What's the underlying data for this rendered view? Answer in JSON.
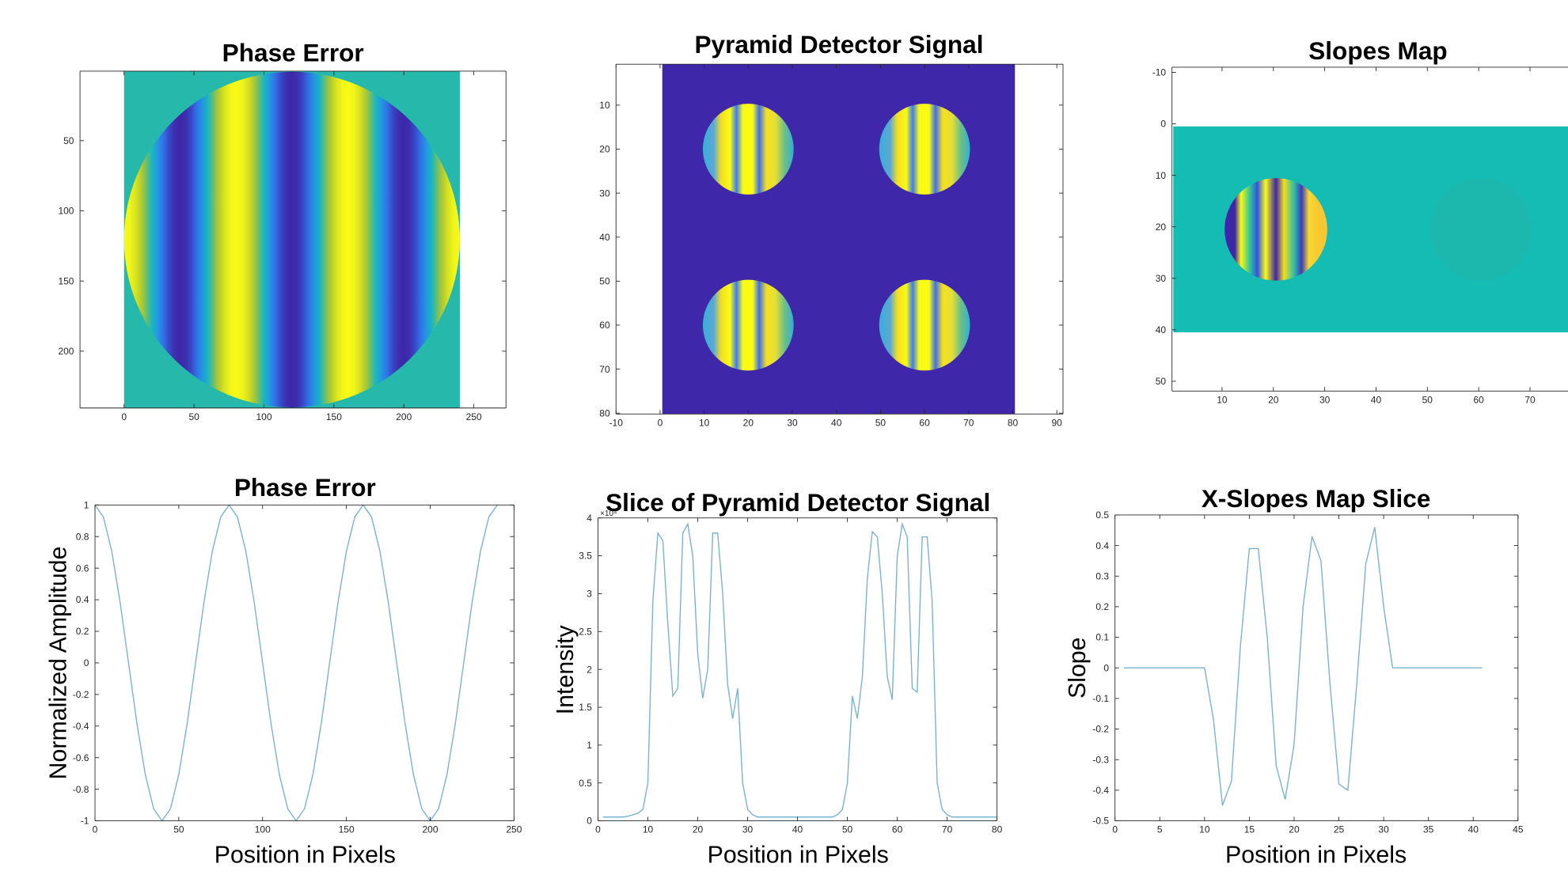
{
  "chart_data": [
    {
      "type": "image",
      "title": "Phase Error",
      "xlim": [
        -31.5,
        273
      ],
      "ylim": [
        0.5,
        240.5
      ],
      "y_direction": "reverse",
      "xticks": [
        0,
        50,
        100,
        150,
        200,
        250
      ],
      "yticks": [
        50,
        100,
        150,
        200
      ]
    },
    {
      "type": "image",
      "title": "Pyramid Detector Signal",
      "xlim": [
        -10,
        91.4
      ],
      "ylim": [
        0.7,
        80.2
      ],
      "y_direction": "reverse",
      "xticks": [
        -10,
        0,
        10,
        20,
        30,
        40,
        50,
        60,
        70,
        80,
        90
      ],
      "yticks": [
        10,
        20,
        30,
        40,
        50,
        60,
        70,
        80
      ]
    },
    {
      "type": "image",
      "title": "Slopes Map",
      "xlim": [
        0.25,
        77.4
      ],
      "ylim": [
        -11,
        51.9
      ],
      "y_direction": "reverse",
      "xticks": [
        10,
        20,
        30,
        40,
        50,
        60,
        70
      ],
      "yticks": [
        -10,
        0,
        10,
        20,
        30,
        40,
        50
      ]
    },
    {
      "type": "line",
      "title": "Phase Error",
      "xlabel": "Position in Pixels",
      "ylabel": "Normalized Amplitude",
      "color": "#7ab3cf",
      "x": [
        0,
        5,
        10,
        15,
        20,
        25,
        30,
        35,
        40,
        45,
        50,
        55,
        60,
        65,
        70,
        75,
        80,
        85,
        90,
        95,
        100,
        105,
        110,
        115,
        120,
        125,
        130,
        135,
        140,
        145,
        150,
        155,
        160,
        165,
        170,
        175,
        180,
        185,
        190,
        195,
        200,
        205,
        210,
        215,
        220,
        225,
        230,
        235,
        240
      ],
      "values": [
        1,
        0.924,
        0.707,
        0.383,
        0,
        -0.383,
        -0.707,
        -0.924,
        -1,
        -0.924,
        -0.707,
        -0.383,
        0,
        0.383,
        0.707,
        0.924,
        1,
        0.924,
        0.707,
        0.383,
        0,
        -0.383,
        -0.707,
        -0.924,
        -1,
        -0.924,
        -0.707,
        -0.383,
        0,
        0.383,
        0.707,
        0.924,
        1,
        0.924,
        0.707,
        0.383,
        0,
        -0.383,
        -0.707,
        -0.924,
        -1,
        -0.924,
        -0.707,
        -0.383,
        0,
        0.383,
        0.707,
        0.924,
        1
      ],
      "xlim": [
        0,
        250
      ],
      "ylim": [
        -1,
        1
      ],
      "xticks": [
        0,
        50,
        100,
        150,
        200,
        250
      ],
      "yticks": [
        -1,
        -0.8,
        -0.6,
        -0.4,
        -0.2,
        0,
        0.2,
        0.4,
        0.6,
        0.8,
        1
      ]
    },
    {
      "type": "line",
      "title": "Slice of Pyramid Detector Signal",
      "xlabel": "Position in Pixels",
      "ylabel": "Intensity",
      "y_multiplier": "×10⁴",
      "color": "#7ab3cf",
      "x": [
        1,
        2,
        3,
        4,
        5,
        6,
        7,
        8,
        9,
        10,
        11,
        12,
        13,
        14,
        15,
        16,
        17,
        18,
        19,
        20,
        21,
        22,
        23,
        24,
        25,
        26,
        27,
        28,
        29,
        30,
        31,
        32,
        33,
        34,
        35,
        36,
        37,
        38,
        39,
        40,
        41,
        42,
        43,
        44,
        45,
        46,
        47,
        48,
        49,
        50,
        51,
        52,
        53,
        54,
        55,
        56,
        57,
        58,
        59,
        60,
        61,
        62,
        63,
        64,
        65,
        66,
        67,
        68,
        69,
        70,
        71,
        72,
        73,
        74,
        75,
        76,
        77,
        78,
        79,
        80
      ],
      "values": [
        0.05,
        0.05,
        0.05,
        0.05,
        0.05,
        0.06,
        0.08,
        0.1,
        0.15,
        0.5,
        2.9,
        3.8,
        3.7,
        2.6,
        1.65,
        1.75,
        3.8,
        3.92,
        3.5,
        2.2,
        1.62,
        2.0,
        3.8,
        3.8,
        3.0,
        1.8,
        1.35,
        1.75,
        0.5,
        0.15,
        0.08,
        0.05,
        0.05,
        0.05,
        0.05,
        0.05,
        0.05,
        0.05,
        0.05,
        0.05,
        0.05,
        0.05,
        0.05,
        0.05,
        0.05,
        0.05,
        0.05,
        0.08,
        0.15,
        0.5,
        1.65,
        1.35,
        1.9,
        3.2,
        3.82,
        3.75,
        3.0,
        1.9,
        1.6,
        3.5,
        3.92,
        3.75,
        1.75,
        1.7,
        3.75,
        3.75,
        2.9,
        0.5,
        0.15,
        0.08,
        0.05,
        0.05,
        0.05,
        0.05,
        0.05,
        0.05,
        0.05,
        0.05,
        0.05,
        0.05
      ],
      "xlim": [
        0,
        80
      ],
      "ylim": [
        0,
        4
      ],
      "xticks": [
        0,
        10,
        20,
        30,
        40,
        50,
        60,
        70,
        80
      ],
      "yticks": [
        0,
        0.5,
        1,
        1.5,
        2,
        2.5,
        3,
        3.5,
        4
      ]
    },
    {
      "type": "line",
      "title": "X-Slopes Map Slice",
      "xlabel": "Position in Pixels",
      "ylabel": "Slope",
      "color": "#7ab3cf",
      "x": [
        1,
        2,
        3,
        4,
        5,
        6,
        7,
        8,
        9,
        10,
        11,
        12,
        13,
        14,
        15,
        16,
        17,
        18,
        19,
        20,
        21,
        22,
        23,
        24,
        25,
        26,
        27,
        28,
        29,
        30,
        31,
        32,
        33,
        34,
        35,
        36,
        37,
        38,
        39,
        40,
        41
      ],
      "values": [
        0,
        0,
        0,
        0,
        0,
        0,
        0,
        0,
        0,
        0,
        -0.17,
        -0.45,
        -0.37,
        0.07,
        0.39,
        0.39,
        0.1,
        -0.32,
        -0.43,
        -0.25,
        0.2,
        0.43,
        0.35,
        -0.05,
        -0.38,
        -0.4,
        -0.05,
        0.34,
        0.46,
        0.2,
        0,
        0,
        0,
        0,
        0,
        0,
        0,
        0,
        0,
        0,
        0
      ],
      "xlim": [
        0,
        45
      ],
      "ylim": [
        -0.5,
        0.5
      ],
      "xticks": [
        0,
        5,
        10,
        15,
        20,
        25,
        30,
        35,
        40,
        45
      ],
      "yticks": [
        -0.5,
        -0.4,
        -0.3,
        -0.2,
        -0.1,
        0,
        0.1,
        0.2,
        0.3,
        0.4,
        0.5
      ]
    }
  ]
}
